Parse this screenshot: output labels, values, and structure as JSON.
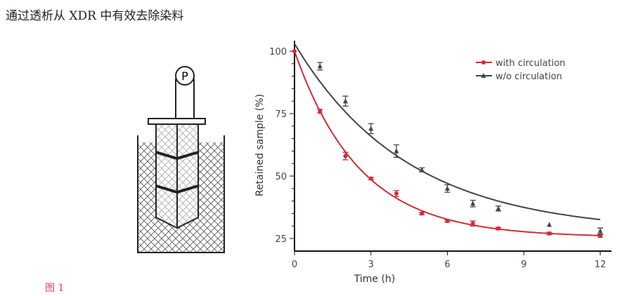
{
  "title": "通过透析从 XDR 中有效去除染料",
  "figure_label": "图 1",
  "diagram": {
    "pump_label": "P"
  },
  "chart_data": {
    "type": "line",
    "xlabel": "Time (h)",
    "ylabel": "Retained sample (%)",
    "xlim": [
      0,
      12.5
    ],
    "ylim": [
      20,
      103
    ],
    "xticks": [
      0,
      3,
      6,
      9,
      12
    ],
    "yticks": [
      25,
      50,
      75,
      100
    ],
    "legend_position": "top-right",
    "grid": false,
    "series": [
      {
        "name": "with circulation",
        "color": "#d42a36",
        "marker": "circle",
        "x": [
          0,
          1,
          2,
          3,
          4,
          5,
          6,
          7,
          8,
          10,
          12
        ],
        "y": [
          100,
          76,
          58,
          49,
          43,
          35,
          32,
          31,
          29,
          27,
          26
        ],
        "err": [
          0,
          0.8,
          1.5,
          0.5,
          1.2,
          0.5,
          0.5,
          1,
          0.5,
          0.5,
          0.5
        ]
      },
      {
        "name": "w/o circulation",
        "color": "#444444",
        "marker": "triangle",
        "x": [
          1,
          2,
          3,
          4,
          5,
          6,
          7,
          8,
          10,
          12
        ],
        "y": [
          94,
          80,
          69,
          60,
          52.5,
          45,
          39,
          37,
          30.5,
          28
        ],
        "err": [
          1.5,
          2,
          2,
          2.5,
          0.8,
          1.5,
          1.3,
          1,
          0.3,
          1.2
        ]
      }
    ]
  }
}
